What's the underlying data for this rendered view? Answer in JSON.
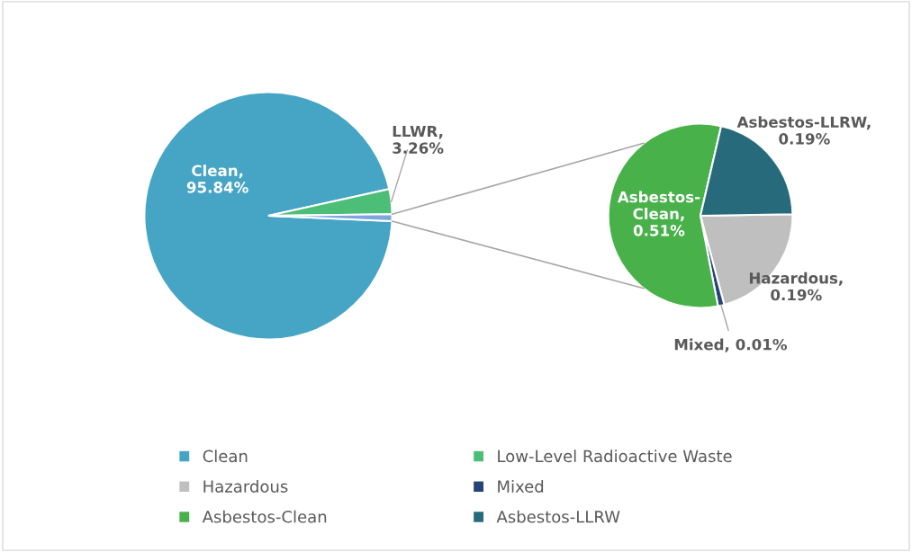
{
  "chart_data": [
    {
      "type": "pie",
      "categories": [
        "Clean",
        "Low-Level Radioactive Waste",
        null
      ],
      "values": [
        95.84,
        3.26,
        0.9
      ],
      "colors": [
        "#46a4c4",
        "#4dbe78",
        "#7ea6dc"
      ],
      "value_labels": [
        "Clean,\n95.84%",
        "LLWR,\n3.26%",
        null
      ],
      "legend": "bottom"
    },
    {
      "type": "pie",
      "categories": [
        "Hazardous",
        "Mixed",
        "Asbestos-Clean",
        "Asbestos-LLRW"
      ],
      "values": [
        0.19,
        0.01,
        0.51,
        0.19
      ],
      "colors": [
        "#bfbfbf",
        "#264478",
        "#48b14a",
        "#276a7c"
      ],
      "value_labels": [
        "Hazardous,\n0.19%",
        "Mixed, 0.01%",
        "Asbestos-\nClean,\n0.51%",
        "Asbestos-LLRW,\n0.19%"
      ],
      "legend": "bottom"
    }
  ]
}
